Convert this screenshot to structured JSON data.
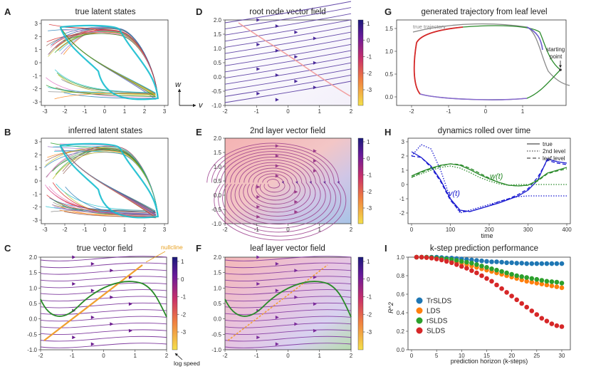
{
  "colors": {
    "purple": "#5b1a8e",
    "navy": "#1a1a7a",
    "green": "#2a8a2a",
    "orange": "#f0a030",
    "red": "#d62728",
    "blue": "#1f77b4",
    "pink": "#e8a0a0",
    "gray": "#888888"
  },
  "panels": [
    {
      "letter": "A",
      "title": "true latent states"
    },
    {
      "letter": "B",
      "title": "inferred latent states"
    },
    {
      "letter": "C",
      "title": "true vector field"
    },
    {
      "letter": "D",
      "title": "root node vector field"
    },
    {
      "letter": "E",
      "title": "2nd layer vector field"
    },
    {
      "letter": "F",
      "title": "leaf layer vector field"
    },
    {
      "letter": "G",
      "title": "generated trajectory from leaf level"
    },
    {
      "letter": "H",
      "title": "dynamics rolled over time"
    },
    {
      "letter": "I",
      "title": "k-step prediction performance"
    }
  ],
  "ticks": {
    "ab_x": [
      "-3",
      "-2",
      "-1",
      "0",
      "1",
      "2",
      "3"
    ],
    "ab_y": [
      "3",
      "2",
      "1",
      "0",
      "-1",
      "-2",
      "-3"
    ],
    "vf_x": [
      "-2",
      "-1",
      "0",
      "1",
      "2"
    ],
    "vf_y": [
      "2.0",
      "1.5",
      "1.0",
      "0.5",
      "0.0",
      "-0.5",
      "-1.0"
    ],
    "cbar": [
      "1",
      "0",
      "-1",
      "-2",
      "-3"
    ],
    "g_x": [
      "-2",
      "-1",
      "0",
      "1"
    ],
    "g_y": [
      "1.5",
      "1.0",
      "0.5",
      "0.0"
    ],
    "h_x": [
      "0",
      "100",
      "200",
      "300",
      "400"
    ],
    "h_y": [
      "3",
      "2",
      "1",
      "0",
      "-1",
      "-2"
    ],
    "i_x": [
      "0",
      "5",
      "10",
      "15",
      "20",
      "25",
      "30"
    ],
    "i_y": [
      "1.0",
      "0.8",
      "0.6",
      "0.4",
      "0.2",
      "0.0"
    ]
  },
  "annotations": {
    "axis_w": "w",
    "axis_v": "v",
    "nullcline": "nullcline",
    "log_speed": "log speed",
    "true_trajectory": "true trajectory",
    "starting_point_1": "starting",
    "starting_point_2": "point",
    "wt": "w(t)",
    "vt": "v(t)",
    "time": "time"
  },
  "chart_data": [
    {
      "type": "line",
      "panel": "H",
      "title": "dynamics rolled over time",
      "xlabel": "time",
      "ylabel": "",
      "xlim": [
        0,
        400
      ],
      "ylim": [
        -2.5,
        3
      ],
      "legend": {
        "position": "top-right",
        "entries": [
          "true",
          "2nd level",
          "leaf level"
        ]
      },
      "x": [
        0,
        25,
        50,
        75,
        100,
        125,
        150,
        175,
        200,
        225,
        250,
        275,
        300,
        325,
        350,
        375,
        400
      ],
      "series": [
        {
          "name": "v(t) true",
          "color": "#1a1ad0",
          "style": "solid",
          "values": [
            2.3,
            1.9,
            1.3,
            0.3,
            -1.0,
            -1.8,
            -1.9,
            -1.7,
            -1.5,
            -1.3,
            -1.05,
            -0.8,
            -0.4,
            0.3,
            1.8,
            1.6,
            1.5
          ]
        },
        {
          "name": "v(t) 2nd level",
          "color": "#1a1ad0",
          "style": "dotted",
          "values": [
            2.0,
            2.8,
            2.5,
            1.0,
            -1.0,
            -2.0,
            -1.8,
            -1.6,
            -1.4,
            -1.2,
            -1.0,
            -0.85,
            -0.8,
            -0.8,
            -0.8,
            -0.8,
            -0.8
          ]
        },
        {
          "name": "v(t) leaf level",
          "color": "#1a1ad0",
          "style": "dashed",
          "values": [
            2.0,
            1.9,
            1.2,
            0.2,
            -1.1,
            -1.9,
            -1.9,
            -1.7,
            -1.5,
            -1.2,
            -1.0,
            -0.7,
            -0.3,
            0.5,
            1.7,
            1.5,
            1.4
          ]
        },
        {
          "name": "w(t) true",
          "color": "#2a8a2a",
          "style": "solid",
          "values": [
            0.6,
            0.9,
            1.15,
            1.35,
            1.45,
            1.35,
            1.05,
            0.7,
            0.4,
            0.15,
            -0.05,
            -0.1,
            -0.05,
            0.3,
            0.8,
            1.0,
            1.2
          ]
        },
        {
          "name": "w(t) 2nd level",
          "color": "#2a8a2a",
          "style": "dotted",
          "values": [
            0.5,
            0.75,
            1.0,
            1.2,
            1.3,
            1.15,
            0.85,
            0.5,
            0.25,
            0.05,
            -0.05,
            0.0,
            0.0,
            0.0,
            0.0,
            0.0,
            0.0
          ]
        },
        {
          "name": "w(t) leaf level",
          "color": "#2a8a2a",
          "style": "dashed",
          "values": [
            0.5,
            0.85,
            1.1,
            1.3,
            1.45,
            1.4,
            1.15,
            0.8,
            0.45,
            0.15,
            -0.05,
            -0.1,
            -0.05,
            0.25,
            0.75,
            0.95,
            1.1
          ]
        }
      ]
    },
    {
      "type": "line",
      "panel": "I",
      "title": "k-step prediction performance",
      "xlabel": "prediction horizon (k-steps)",
      "ylabel": "R^2",
      "xlim": [
        0,
        31
      ],
      "ylim": [
        0,
        1.0
      ],
      "legend": {
        "position": "bottom-left",
        "entries": [
          "TrSLDS",
          "LDS",
          "rSLDS",
          "SLDS"
        ]
      },
      "x": [
        1,
        2,
        3,
        4,
        5,
        6,
        7,
        8,
        9,
        10,
        11,
        12,
        13,
        14,
        15,
        16,
        17,
        18,
        19,
        20,
        21,
        22,
        23,
        24,
        25,
        26,
        27,
        28,
        29,
        30
      ],
      "series": [
        {
          "name": "TrSLDS",
          "color": "#1f77b4",
          "values": [
            1.0,
            1.0,
            1.0,
            1.0,
            1.0,
            0.995,
            0.99,
            0.99,
            0.985,
            0.98,
            0.975,
            0.97,
            0.965,
            0.96,
            0.955,
            0.95,
            0.95,
            0.945,
            0.94,
            0.94,
            0.935,
            0.935,
            0.93,
            0.93,
            0.93,
            0.93,
            0.93,
            0.93,
            0.93,
            0.93
          ]
        },
        {
          "name": "LDS",
          "color": "#ff7f0e",
          "values": [
            1.0,
            1.0,
            0.995,
            0.99,
            0.985,
            0.975,
            0.965,
            0.955,
            0.945,
            0.935,
            0.92,
            0.905,
            0.89,
            0.875,
            0.86,
            0.845,
            0.83,
            0.815,
            0.8,
            0.785,
            0.77,
            0.755,
            0.74,
            0.73,
            0.72,
            0.71,
            0.7,
            0.69,
            0.68,
            0.67
          ]
        },
        {
          "name": "rSLDS",
          "color": "#2ca02c",
          "values": [
            1.0,
            1.0,
            1.0,
            0.995,
            0.99,
            0.985,
            0.98,
            0.975,
            0.965,
            0.955,
            0.945,
            0.935,
            0.92,
            0.905,
            0.89,
            0.875,
            0.86,
            0.845,
            0.83,
            0.815,
            0.8,
            0.79,
            0.78,
            0.77,
            0.76,
            0.75,
            0.74,
            0.735,
            0.73,
            0.72
          ]
        },
        {
          "name": "SLDS",
          "color": "#d62728",
          "values": [
            1.0,
            1.0,
            0.995,
            0.99,
            0.98,
            0.97,
            0.955,
            0.94,
            0.92,
            0.9,
            0.88,
            0.855,
            0.83,
            0.8,
            0.77,
            0.74,
            0.7,
            0.66,
            0.62,
            0.58,
            0.54,
            0.5,
            0.46,
            0.42,
            0.38,
            0.34,
            0.31,
            0.28,
            0.26,
            0.25
          ]
        }
      ]
    }
  ]
}
